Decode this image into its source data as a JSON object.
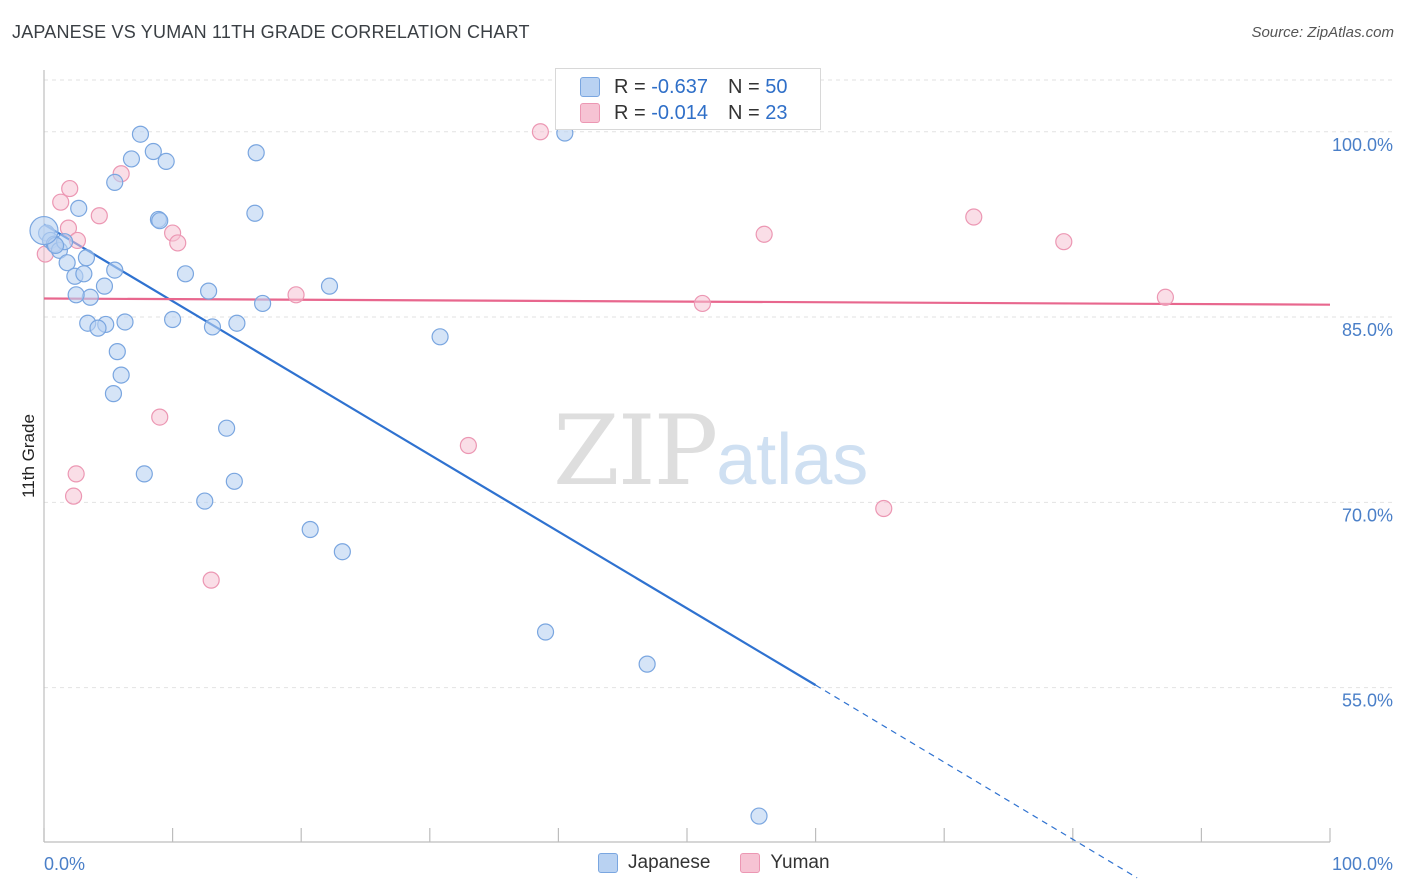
{
  "title": "JAPANESE VS YUMAN 11TH GRADE CORRELATION CHART",
  "source": "Source: ZipAtlas.com",
  "watermark": {
    "zip": "ZIP",
    "atlas": "atlas"
  },
  "legend": {
    "rows": [
      {
        "r_label": "R =",
        "r_value": "-0.637",
        "n_label": "N =",
        "n_value": "50"
      },
      {
        "r_label": "R =",
        "r_value": "-0.014",
        "n_label": "N =",
        "n_value": "23"
      }
    ]
  },
  "colors": {
    "japanese_fill": "#b9d2f2",
    "japanese_stroke": "#7aa6e0",
    "japanese_line": "#2f72d0",
    "yuman_fill": "#f6c3d3",
    "yuman_stroke": "#ec97b3",
    "yuman_line": "#e8678e",
    "grid": "#e2e2e2",
    "tick_text": "#4a7fc8"
  },
  "chart_data": {
    "type": "scatter",
    "title": "JAPANESE VS YUMAN 11TH GRADE CORRELATION CHART",
    "xlabel": "",
    "ylabel": "11th Grade",
    "xlim": [
      0,
      100
    ],
    "ylim": [
      42.5,
      105
    ],
    "x_tick_labels": [
      "0.0%",
      "100.0%"
    ],
    "y_ticks": [
      100,
      85,
      70,
      55
    ],
    "y_tick_labels": [
      "100.0%",
      "85.0%",
      "70.0%",
      "55.0%"
    ],
    "grid": true,
    "legend_position": "bottom-center",
    "series": [
      {
        "name": "Japanese",
        "r": -0.637,
        "n": 50,
        "trend": {
          "x0": 0,
          "y0": 92.5,
          "x1": 60,
          "y1": 55.2,
          "dash_to_x": 85,
          "dash_to_y": 39.6
        },
        "points": [
          [
            0.2,
            91.8
          ],
          [
            0.5,
            91.2
          ],
          [
            0.8,
            90.9
          ],
          [
            1.2,
            90.4
          ],
          [
            1.6,
            91.1
          ],
          [
            0.9,
            90.8
          ],
          [
            2.7,
            93.8
          ],
          [
            1.8,
            89.4
          ],
          [
            3.3,
            89.8
          ],
          [
            2.4,
            88.3
          ],
          [
            3.1,
            88.5
          ],
          [
            4.7,
            87.5
          ],
          [
            3.6,
            86.6
          ],
          [
            2.5,
            86.8
          ],
          [
            5.5,
            88.8
          ],
          [
            3.4,
            84.5
          ],
          [
            4.8,
            84.4
          ],
          [
            4.2,
            84.1
          ],
          [
            6.3,
            84.6
          ],
          [
            5.7,
            82.2
          ],
          [
            6.0,
            80.3
          ],
          [
            5.4,
            78.8
          ],
          [
            7.5,
            99.8
          ],
          [
            6.8,
            97.8
          ],
          [
            8.5,
            98.4
          ],
          [
            9.5,
            97.6
          ],
          [
            5.5,
            95.9
          ],
          [
            8.9,
            92.9
          ],
          [
            9.0,
            92.8
          ],
          [
            11.0,
            88.5
          ],
          [
            10.0,
            84.8
          ],
          [
            12.8,
            87.1
          ],
          [
            13.1,
            84.2
          ],
          [
            15.0,
            84.5
          ],
          [
            17.0,
            86.1
          ],
          [
            16.5,
            98.3
          ],
          [
            16.4,
            93.4
          ],
          [
            22.2,
            87.5
          ],
          [
            30.8,
            83.4
          ],
          [
            40.5,
            99.9
          ],
          [
            14.2,
            76.0
          ],
          [
            7.8,
            72.3
          ],
          [
            12.5,
            70.1
          ],
          [
            14.8,
            71.7
          ],
          [
            20.7,
            67.8
          ],
          [
            23.2,
            66.0
          ],
          [
            39.0,
            59.5
          ],
          [
            46.9,
            56.9
          ],
          [
            55.6,
            44.6
          ],
          [
            0.0,
            92.0
          ]
        ]
      },
      {
        "name": "Yuman",
        "r": -0.014,
        "n": 23,
        "trend": {
          "x0": 0,
          "y0": 86.5,
          "x1": 100,
          "y1": 86.0
        },
        "points": [
          [
            0.1,
            90.1
          ],
          [
            0.8,
            90.9
          ],
          [
            1.9,
            92.2
          ],
          [
            2.6,
            91.2
          ],
          [
            1.3,
            94.3
          ],
          [
            2.0,
            95.4
          ],
          [
            4.3,
            93.2
          ],
          [
            6.0,
            96.6
          ],
          [
            10.0,
            91.8
          ],
          [
            10.4,
            91.0
          ],
          [
            19.6,
            86.8
          ],
          [
            38.6,
            100.0
          ],
          [
            51.2,
            86.1
          ],
          [
            56.0,
            91.7
          ],
          [
            72.3,
            93.1
          ],
          [
            79.3,
            91.1
          ],
          [
            87.2,
            86.6
          ],
          [
            9.0,
            76.9
          ],
          [
            33.0,
            74.6
          ],
          [
            2.5,
            72.3
          ],
          [
            2.3,
            70.5
          ],
          [
            65.3,
            69.5
          ],
          [
            13.0,
            63.7
          ]
        ]
      }
    ]
  }
}
